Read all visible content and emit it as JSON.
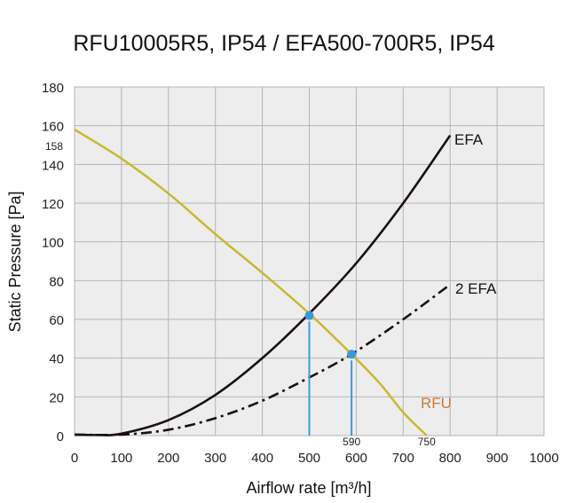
{
  "chart_data": {
    "type": "line",
    "title": "RFU10005R5, IP54 / EFA500-700R5, IP54",
    "xlabel": "Airflow rate [m³/h]",
    "ylabel": "Static Pressure [Pa]",
    "xlim": [
      0,
      1000
    ],
    "ylim": [
      0,
      180
    ],
    "xticks": [
      "0",
      "100",
      "200",
      "300",
      "400",
      "500",
      "600",
      "700",
      "800",
      "900",
      "1000"
    ],
    "yticks": [
      "0",
      "20",
      "40",
      "60",
      "80",
      "100",
      "120",
      "140",
      "160",
      "180"
    ],
    "grid": true,
    "background": "#ededed",
    "series": [
      {
        "name": "RFU",
        "color": "#c9b832",
        "label_color": "#d0773a",
        "style": "solid",
        "x": [
          0,
          100,
          200,
          300,
          400,
          500,
          590,
          650,
          700,
          750
        ],
        "y": [
          158,
          143,
          125,
          104,
          84,
          63,
          42,
          27,
          12,
          0
        ]
      },
      {
        "name": "EFA",
        "color": "#1a1014",
        "label_color": "#111111",
        "style": "solid",
        "x": [
          0,
          50,
          100,
          200,
          300,
          400,
          500,
          600,
          700,
          800
        ],
        "y": [
          0.5,
          0.3,
          1,
          8,
          21,
          40,
          63,
          89,
          120,
          155
        ]
      },
      {
        "name": "2 EFA",
        "color": "#1a1014",
        "label_color": "#111111",
        "style": "dashdot",
        "x": [
          0,
          100,
          200,
          300,
          400,
          500,
          590,
          700,
          800
        ],
        "y": [
          0.5,
          0.5,
          3,
          9,
          18,
          30,
          42,
          60,
          78
        ]
      }
    ],
    "operating_points": [
      {
        "x": 500,
        "y": 62
      },
      {
        "x": 590,
        "y": 42
      }
    ],
    "point_color": "#3a9ad9",
    "annotations": [
      {
        "text": "158",
        "axis": "y",
        "value": 158
      },
      {
        "text": "590",
        "axis": "x",
        "value": 590
      },
      {
        "text": "750",
        "axis": "x",
        "value": 750
      }
    ]
  }
}
